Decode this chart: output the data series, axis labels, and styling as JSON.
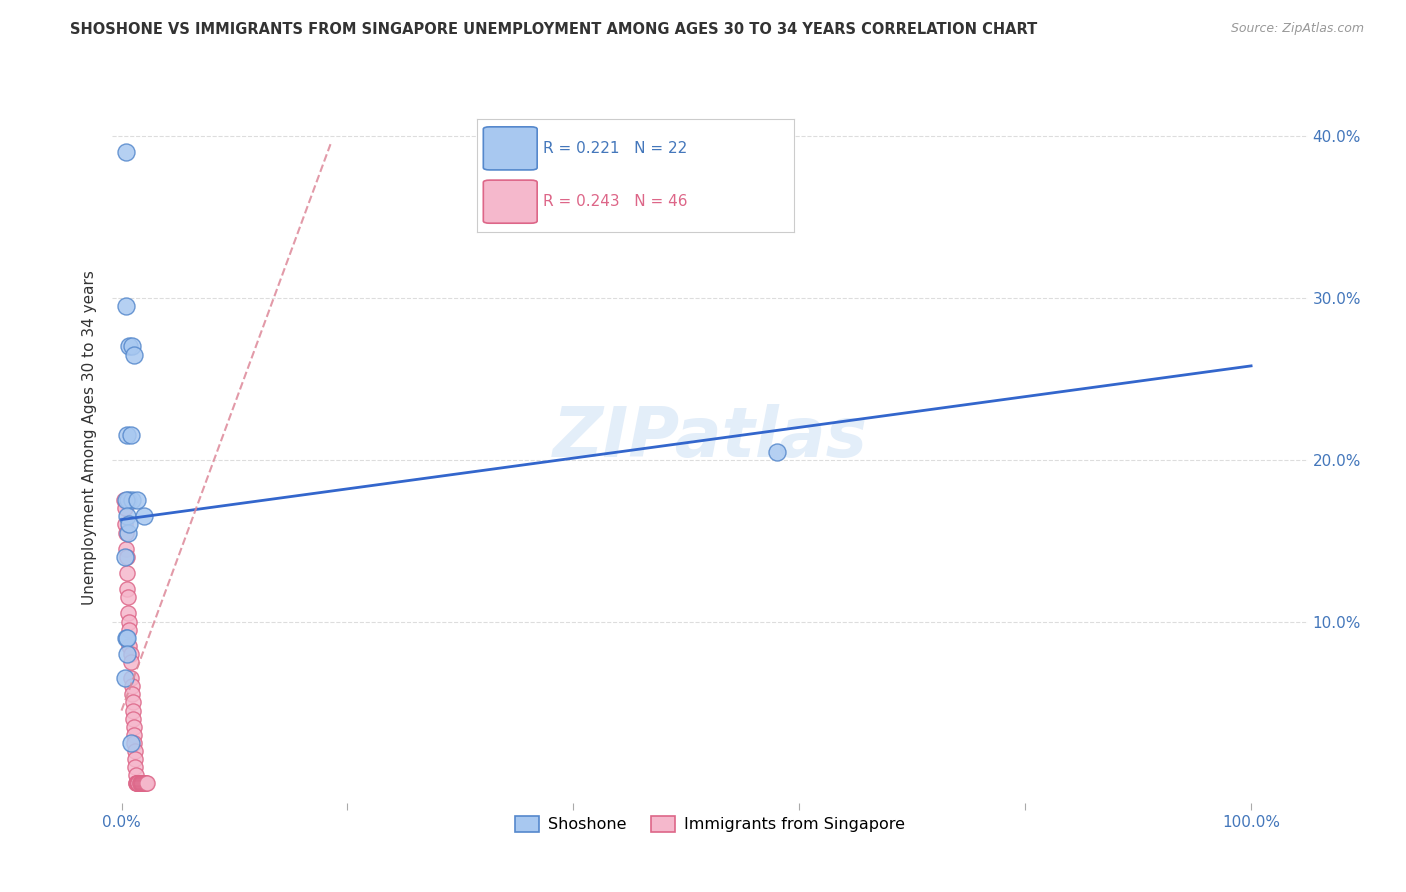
{
  "title": "SHOSHONE VS IMMIGRANTS FROM SINGAPORE UNEMPLOYMENT AMONG AGES 30 TO 34 YEARS CORRELATION CHART",
  "source": "Source: ZipAtlas.com",
  "ylabel": "Unemployment Among Ages 30 to 34 years",
  "xlim": [
    -0.008,
    1.05
  ],
  "ylim": [
    -0.012,
    0.44
  ],
  "xtick_positions": [
    0.0,
    0.2,
    0.4,
    0.6,
    0.8,
    1.0
  ],
  "xticklabels": [
    "0.0%",
    "",
    "",
    "",
    "",
    "100.0%"
  ],
  "ytick_right": [
    0.1,
    0.2,
    0.3,
    0.4
  ],
  "yticklabels_right": [
    "10.0%",
    "20.0%",
    "30.0%",
    "40.0%"
  ],
  "shoshone_color": "#a8c8f0",
  "shoshone_edge": "#5588cc",
  "singapore_color": "#f5b8cc",
  "singapore_edge": "#dd6688",
  "trend_blue_color": "#3366cc",
  "trend_pink_color": "#dd8899",
  "R_shoshone": "0.221",
  "N_shoshone": "22",
  "R_singapore": "0.243",
  "N_singapore": "46",
  "grid_color": "#dddddd",
  "watermark_color": "#cce0f5",
  "shoshone_x": [
    0.004,
    0.004,
    0.007,
    0.009,
    0.011,
    0.005,
    0.008,
    0.006,
    0.009,
    0.004,
    0.005,
    0.006,
    0.007,
    0.003,
    0.004,
    0.005,
    0.003,
    0.005,
    0.008,
    0.014,
    0.02,
    0.58
  ],
  "shoshone_y": [
    0.39,
    0.295,
    0.27,
    0.27,
    0.265,
    0.215,
    0.215,
    0.175,
    0.175,
    0.175,
    0.165,
    0.155,
    0.16,
    0.14,
    0.09,
    0.09,
    0.065,
    0.08,
    0.025,
    0.175,
    0.165,
    0.205
  ],
  "singapore_x": [
    0.002,
    0.003,
    0.003,
    0.004,
    0.004,
    0.005,
    0.005,
    0.005,
    0.006,
    0.006,
    0.007,
    0.007,
    0.007,
    0.008,
    0.008,
    0.008,
    0.009,
    0.009,
    0.01,
    0.01,
    0.01,
    0.011,
    0.011,
    0.011,
    0.012,
    0.012,
    0.012,
    0.013,
    0.013,
    0.013,
    0.014,
    0.014,
    0.015,
    0.015,
    0.015,
    0.016,
    0.016,
    0.017,
    0.017,
    0.018,
    0.018,
    0.019,
    0.02,
    0.021,
    0.022,
    0.023
  ],
  "singapore_y": [
    0.175,
    0.17,
    0.16,
    0.155,
    0.145,
    0.14,
    0.13,
    0.12,
    0.115,
    0.105,
    0.1,
    0.095,
    0.085,
    0.08,
    0.075,
    0.065,
    0.06,
    0.055,
    0.05,
    0.045,
    0.04,
    0.035,
    0.03,
    0.025,
    0.02,
    0.015,
    0.01,
    0.005,
    0.0,
    0.0,
    0.0,
    0.0,
    0.0,
    0.0,
    0.0,
    0.0,
    0.0,
    0.0,
    0.0,
    0.0,
    0.0,
    0.0,
    0.0,
    0.0,
    0.0,
    0.0
  ],
  "trend_blue_x0": 0.0,
  "trend_blue_x1": 1.0,
  "trend_blue_y0": 0.163,
  "trend_blue_y1": 0.258,
  "trend_pink_x0": 0.0,
  "trend_pink_x1": 0.185,
  "trend_pink_y0": 0.045,
  "trend_pink_y1": 0.395
}
